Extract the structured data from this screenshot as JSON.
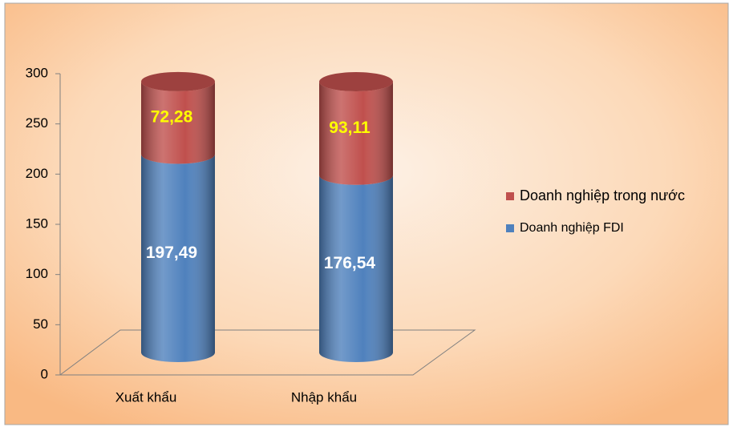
{
  "chart_data": {
    "type": "stacked-cylinder",
    "categories": [
      "Xuất khẩu",
      "Nhập khẩu"
    ],
    "series": [
      {
        "name": "Doanh nghiệp FDI",
        "color": "#4f81bd",
        "values": [
          197.49,
          176.54
        ],
        "value_labels": [
          "197,49",
          "176,54"
        ],
        "label_color": "#ffffff"
      },
      {
        "name": "Doanh nghiệp trong nước",
        "color": "#c0504d",
        "values": [
          72.28,
          93.11
        ],
        "value_labels": [
          "72,28",
          "93,11"
        ],
        "label_color": "#ffff00"
      }
    ],
    "ylim": [
      0,
      300
    ],
    "yticks": [
      0,
      50,
      100,
      150,
      200,
      250,
      300
    ],
    "legend": "right"
  }
}
